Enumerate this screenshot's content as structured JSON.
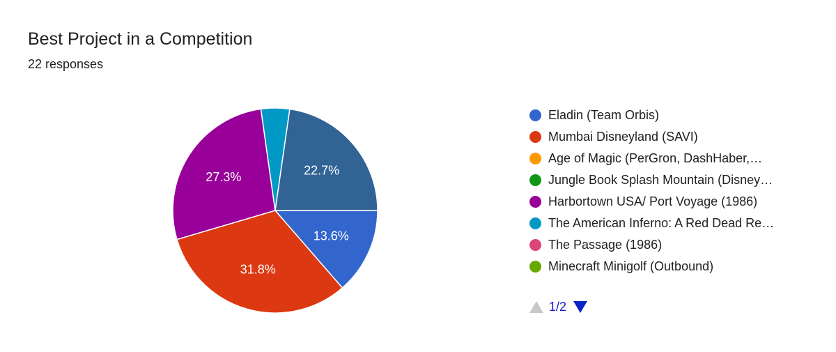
{
  "title": "Best Project in a Competition",
  "subtitle": "22 responses",
  "chart_data": {
    "type": "pie",
    "slices": [
      {
        "label": "Eladin (Team Orbis)",
        "value": 13.6,
        "color": "#3366cc",
        "show_label": "13.6%"
      },
      {
        "label": "Mumbai Disneyland (SAVI)",
        "value": 31.8,
        "color": "#dc3912",
        "show_label": "31.8%"
      },
      {
        "label": "Age of Magic (PerGron, DashHaber,…",
        "value": 0,
        "color": "#ff9900",
        "show_label": ""
      },
      {
        "label": "Jungle Book Splash Mountain (Disney…",
        "value": 0,
        "color": "#109618",
        "show_label": ""
      },
      {
        "label": "Harbortown USA/ Port Voyage (1986)",
        "value": 27.3,
        "color": "#990099",
        "show_label": "27.3%"
      },
      {
        "label": "The American Inferno: A Red Dead Re…",
        "value": 4.5,
        "color": "#0099c6",
        "show_label": ""
      },
      {
        "label": "The Passage (1986)",
        "value": 0,
        "color": "#dd4477",
        "show_label": ""
      },
      {
        "label": "Minecraft Minigolf (Outbound)",
        "value": 0,
        "color": "#66aa00",
        "show_label": ""
      },
      {
        "label": "",
        "value": 22.7,
        "color": "#316395",
        "show_label": "22.7%"
      }
    ]
  },
  "pager": {
    "page": "1/2"
  }
}
